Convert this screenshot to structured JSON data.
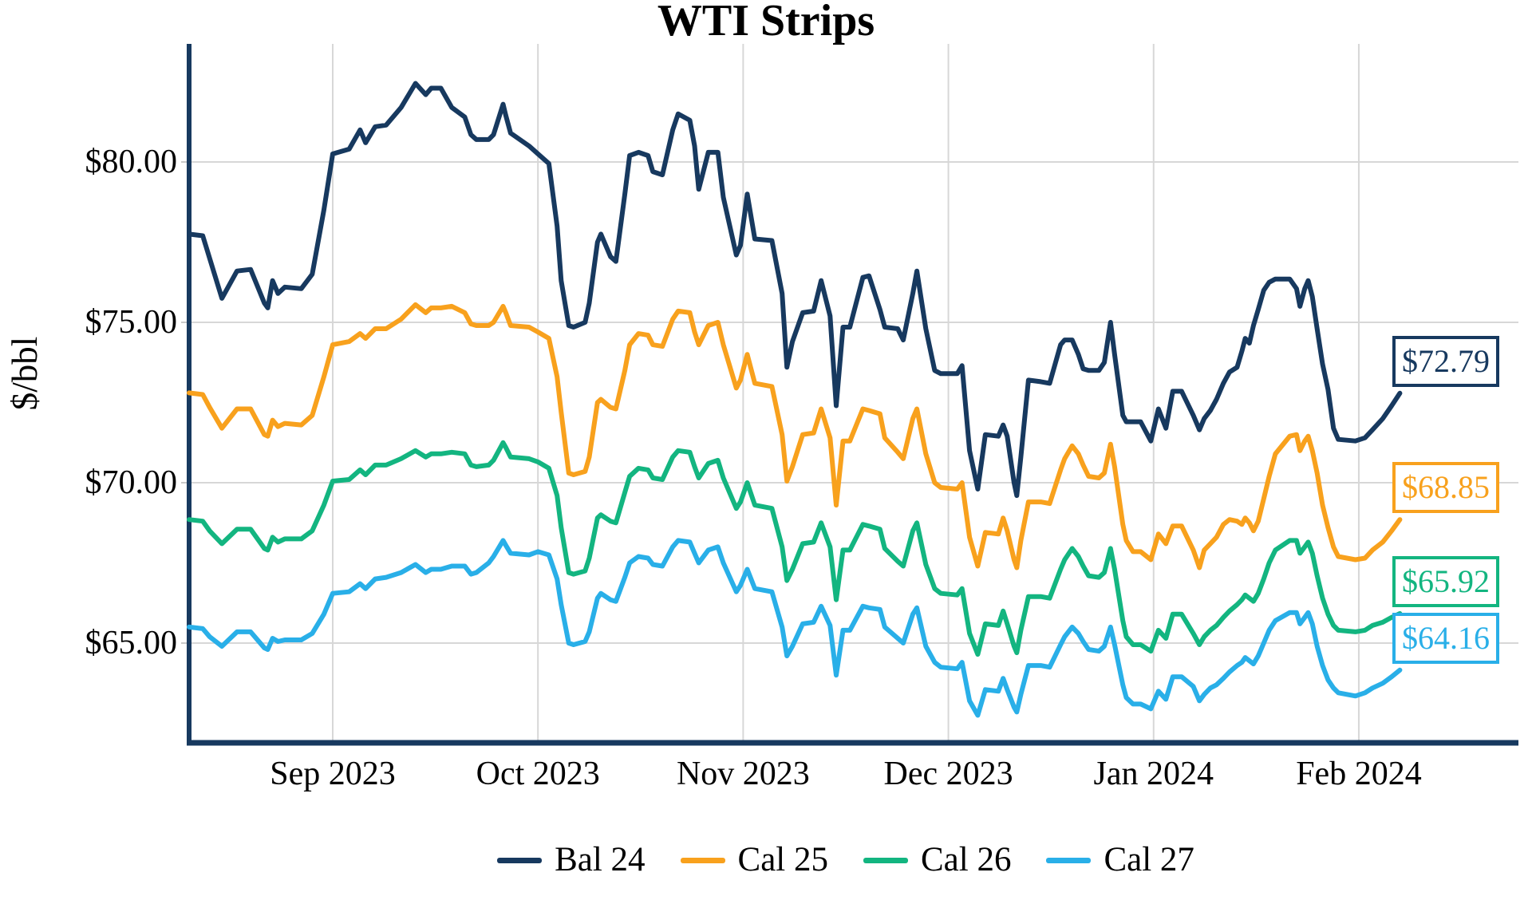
{
  "title": "WTI Strips",
  "y_axis": {
    "label": "$/bbl",
    "ticks": [
      "$80.00",
      "$75.00",
      "$70.00",
      "$65.00"
    ],
    "tick_values": [
      80,
      75,
      70,
      65
    ]
  },
  "x_axis": {
    "labels": [
      "Sep 2023",
      "Oct 2023",
      "Nov 2023",
      "Dec 2023",
      "Jan 2024",
      "Feb 2024"
    ],
    "tick_days": [
      21,
      51,
      81,
      111,
      141,
      171
    ]
  },
  "colors": {
    "navy": "#17395f",
    "orange": "#f8a11d",
    "green": "#13b580",
    "cyan": "#29afe8",
    "gridline": "#d7d7d7",
    "axis": "#17395f"
  },
  "chart_data": {
    "type": "line",
    "title": "WTI Strips",
    "ylabel": "$/bbl",
    "ylim": [
      62.2,
      83.8
    ],
    "grid": true,
    "legend_position": "bottom",
    "x_unit": "days since 2023-08-11 (Sep 1 = 21, Oct 1 = 51, Nov 1 = 81, Dec 1 = 111, Jan 1 = 141, Feb 1 = 171)",
    "x": [
      0,
      2,
      3,
      4.8,
      7,
      9,
      11,
      11.5,
      12.2,
      13,
      14,
      16.4,
      18,
      19.7,
      21,
      23.4,
      25,
      25.8,
      27.2,
      28.8,
      31,
      33.1,
      34.6,
      35.4,
      36.8,
      38.4,
      40.3,
      41.2,
      42,
      43.8,
      44.5,
      45.9,
      46.3,
      47,
      49.7,
      51,
      52.6,
      53.8,
      54.4,
      55.5,
      56.2,
      57.9,
      58.5,
      59.7,
      60.2,
      61.6,
      62.4,
      63.7,
      64.4,
      65.7,
      67.1,
      67.8,
      69.2,
      70.7,
      71.5,
      73.2,
      73.9,
      74.5,
      75.9,
      77.3,
      78.1,
      80,
      80.6,
      81.6,
      82.7,
      85.2,
      86.7,
      87.4,
      88.2,
      89.7,
      91.3,
      92.4,
      93.7,
      94.6,
      95.6,
      96.6,
      98.5,
      99.4,
      101,
      101.7,
      103.6,
      104.4,
      105.8,
      106.4,
      107.7,
      109,
      109.9,
      112.3,
      113,
      114.1,
      115.3,
      116.4,
      118.3,
      119,
      119.6,
      120.6,
      121,
      121.6,
      122.7,
      124.5,
      125.8,
      127.4,
      128,
      129.1,
      130,
      130.7,
      131.5,
      133,
      133.8,
      134.7,
      135.3,
      136.5,
      137,
      138,
      139.1,
      140.6,
      141.7,
      142.8,
      143.8,
      145.1,
      146.8,
      147.7,
      148.4,
      149.3,
      150.2,
      151.2,
      152.1,
      153.2,
      153.9,
      154.4,
      155,
      155.6,
      156.3,
      157.1,
      157.9,
      158.8,
      160.9,
      161.9,
      162.4,
      163.1,
      163.6,
      164.2,
      164.9,
      165.7,
      166.5,
      167.3,
      168,
      170.5,
      171.9,
      173,
      174.5,
      175.8,
      177
    ],
    "series": [
      {
        "name": "Bal 24",
        "color": "#17395f",
        "end_label": "$72.79",
        "end_value": 72.79,
        "values": [
          77.75,
          77.7,
          77.0,
          75.75,
          76.6,
          76.65,
          75.6,
          75.45,
          76.3,
          75.9,
          76.1,
          76.05,
          76.5,
          78.5,
          80.25,
          80.4,
          81.0,
          80.6,
          81.1,
          81.15,
          81.7,
          82.45,
          82.1,
          82.3,
          82.3,
          81.7,
          81.4,
          80.85,
          80.7,
          80.7,
          80.85,
          81.8,
          81.45,
          80.9,
          80.5,
          80.25,
          79.95,
          78.0,
          76.3,
          74.9,
          74.85,
          75.0,
          75.6,
          77.5,
          77.75,
          77.05,
          76.9,
          79.0,
          80.2,
          80.3,
          80.2,
          79.7,
          79.6,
          81.0,
          81.5,
          81.3,
          80.5,
          79.15,
          80.3,
          80.3,
          78.9,
          77.1,
          77.4,
          79.0,
          77.6,
          77.55,
          75.9,
          73.6,
          74.4,
          75.3,
          75.35,
          76.3,
          75.2,
          72.4,
          74.85,
          74.85,
          76.4,
          76.45,
          75.4,
          74.85,
          74.8,
          74.45,
          75.9,
          76.6,
          74.8,
          73.5,
          73.4,
          73.4,
          73.65,
          71.0,
          69.8,
          71.5,
          71.45,
          71.8,
          71.45,
          70.0,
          69.6,
          70.8,
          73.2,
          73.15,
          73.1,
          74.3,
          74.45,
          74.45,
          74.0,
          73.55,
          73.5,
          73.5,
          73.75,
          75.0,
          74.0,
          72.1,
          71.9,
          71.9,
          71.9,
          71.3,
          72.3,
          71.7,
          72.85,
          72.85,
          72.1,
          71.65,
          72.0,
          72.25,
          72.6,
          73.1,
          73.45,
          73.6,
          74.1,
          74.5,
          74.35,
          74.9,
          75.4,
          76.0,
          76.25,
          76.35,
          76.35,
          76.05,
          75.5,
          76.05,
          76.3,
          75.8,
          74.8,
          73.7,
          72.9,
          71.7,
          71.35,
          71.3,
          71.4,
          71.65,
          72.0,
          72.4,
          72.79
        ]
      },
      {
        "name": "Cal 25",
        "color": "#f8a11d",
        "end_label": "$68.85",
        "end_value": 68.85,
        "values": [
          72.8,
          72.75,
          72.35,
          71.7,
          72.3,
          72.3,
          71.5,
          71.45,
          71.95,
          71.75,
          71.85,
          71.8,
          72.1,
          73.3,
          74.3,
          74.4,
          74.65,
          74.5,
          74.8,
          74.8,
          75.1,
          75.55,
          75.3,
          75.45,
          75.45,
          75.5,
          75.3,
          74.95,
          74.9,
          74.9,
          75.0,
          75.5,
          75.3,
          74.9,
          74.85,
          74.7,
          74.5,
          73.3,
          72.2,
          70.3,
          70.25,
          70.35,
          70.8,
          72.5,
          72.6,
          72.35,
          72.3,
          73.5,
          74.3,
          74.65,
          74.6,
          74.3,
          74.25,
          75.1,
          75.35,
          75.3,
          74.7,
          74.3,
          74.9,
          75.0,
          74.3,
          72.95,
          73.2,
          74.0,
          73.1,
          73.0,
          71.5,
          70.05,
          70.5,
          71.5,
          71.55,
          72.3,
          71.4,
          69.3,
          71.3,
          71.3,
          72.3,
          72.25,
          72.15,
          71.4,
          70.95,
          70.75,
          72.0,
          72.3,
          70.9,
          70.0,
          69.85,
          69.8,
          70.0,
          68.3,
          67.4,
          68.45,
          68.4,
          68.9,
          68.5,
          67.6,
          67.35,
          68.2,
          69.4,
          69.4,
          69.35,
          70.4,
          70.75,
          71.15,
          70.9,
          70.55,
          70.2,
          70.15,
          70.3,
          71.2,
          70.5,
          68.7,
          68.2,
          67.85,
          67.85,
          67.6,
          68.4,
          68.1,
          68.65,
          68.65,
          67.9,
          67.35,
          67.9,
          68.1,
          68.3,
          68.7,
          68.85,
          68.8,
          68.7,
          68.9,
          68.75,
          68.5,
          68.8,
          69.5,
          70.2,
          70.9,
          71.45,
          71.5,
          71.0,
          71.3,
          71.45,
          71.0,
          70.3,
          69.3,
          68.6,
          68.0,
          67.7,
          67.6,
          67.65,
          67.9,
          68.15,
          68.5,
          68.85
        ]
      },
      {
        "name": "Cal 26",
        "color": "#13b580",
        "end_label": "$65.92",
        "end_value": 65.92,
        "values": [
          68.85,
          68.8,
          68.5,
          68.1,
          68.55,
          68.55,
          67.95,
          67.9,
          68.3,
          68.15,
          68.25,
          68.25,
          68.5,
          69.3,
          70.05,
          70.1,
          70.4,
          70.25,
          70.55,
          70.55,
          70.75,
          71.0,
          70.8,
          70.9,
          70.9,
          70.95,
          70.9,
          70.55,
          70.5,
          70.55,
          70.7,
          71.25,
          71.1,
          70.8,
          70.75,
          70.65,
          70.45,
          69.6,
          68.6,
          67.2,
          67.15,
          67.25,
          67.65,
          68.9,
          69.0,
          68.8,
          68.75,
          69.7,
          70.2,
          70.45,
          70.4,
          70.15,
          70.1,
          70.8,
          71.0,
          70.95,
          70.5,
          70.15,
          70.6,
          70.7,
          70.15,
          69.2,
          69.4,
          70.0,
          69.3,
          69.2,
          68.0,
          66.95,
          67.3,
          68.1,
          68.15,
          68.75,
          68.0,
          66.35,
          67.9,
          67.9,
          68.7,
          68.65,
          68.55,
          67.95,
          67.55,
          67.4,
          68.5,
          68.75,
          67.45,
          66.7,
          66.55,
          66.5,
          66.7,
          65.3,
          64.65,
          65.6,
          65.55,
          66.0,
          65.6,
          64.9,
          64.7,
          65.4,
          66.45,
          66.45,
          66.4,
          67.3,
          67.6,
          67.95,
          67.7,
          67.4,
          67.1,
          67.05,
          67.2,
          67.95,
          67.3,
          65.7,
          65.2,
          64.95,
          64.95,
          64.75,
          65.4,
          65.15,
          65.9,
          65.9,
          65.3,
          64.95,
          65.2,
          65.4,
          65.55,
          65.8,
          66.0,
          66.2,
          66.35,
          66.5,
          66.4,
          66.3,
          66.55,
          67.0,
          67.5,
          67.9,
          68.2,
          68.2,
          67.8,
          68.0,
          68.15,
          67.8,
          67.1,
          66.4,
          65.9,
          65.55,
          65.4,
          65.35,
          65.4,
          65.55,
          65.65,
          65.8,
          65.92
        ]
      },
      {
        "name": "Cal 27",
        "color": "#29afe8",
        "end_label": "$64.16",
        "end_value": 64.16,
        "values": [
          65.5,
          65.45,
          65.2,
          64.9,
          65.35,
          65.35,
          64.85,
          64.8,
          65.15,
          65.05,
          65.1,
          65.1,
          65.3,
          65.9,
          66.55,
          66.6,
          66.85,
          66.7,
          67.0,
          67.05,
          67.2,
          67.45,
          67.2,
          67.3,
          67.3,
          67.4,
          67.4,
          67.15,
          67.2,
          67.5,
          67.7,
          68.2,
          68.05,
          67.8,
          67.75,
          67.85,
          67.75,
          67.0,
          66.2,
          65.0,
          64.95,
          65.05,
          65.35,
          66.4,
          66.55,
          66.35,
          66.3,
          67.05,
          67.5,
          67.7,
          67.65,
          67.45,
          67.4,
          68.0,
          68.2,
          68.15,
          67.8,
          67.5,
          67.9,
          68.0,
          67.5,
          66.6,
          66.8,
          67.3,
          66.7,
          66.6,
          65.5,
          64.6,
          64.9,
          65.6,
          65.65,
          66.15,
          65.55,
          64.0,
          65.4,
          65.4,
          66.15,
          66.1,
          66.05,
          65.5,
          65.15,
          65.0,
          65.9,
          66.1,
          64.9,
          64.4,
          64.25,
          64.2,
          64.4,
          63.2,
          62.75,
          63.55,
          63.5,
          63.9,
          63.55,
          63.0,
          62.85,
          63.4,
          64.3,
          64.3,
          64.25,
          64.95,
          65.2,
          65.5,
          65.3,
          65.05,
          64.8,
          64.75,
          64.9,
          65.5,
          64.95,
          63.7,
          63.3,
          63.1,
          63.1,
          62.95,
          63.5,
          63.25,
          63.95,
          63.95,
          63.65,
          63.2,
          63.4,
          63.6,
          63.7,
          63.9,
          64.1,
          64.3,
          64.4,
          64.55,
          64.45,
          64.35,
          64.6,
          65.0,
          65.4,
          65.7,
          65.95,
          65.95,
          65.6,
          65.8,
          65.95,
          65.6,
          64.9,
          64.3,
          63.85,
          63.6,
          63.45,
          63.35,
          63.45,
          63.6,
          63.75,
          63.95,
          64.16
        ]
      }
    ]
  }
}
